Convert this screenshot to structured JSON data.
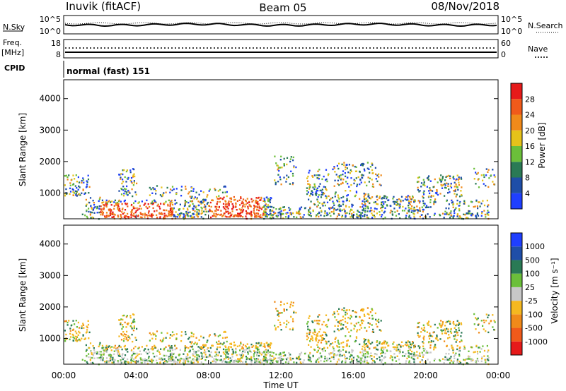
{
  "header": {
    "station": "Inuvik (fitACF)",
    "beam": "Beam 05",
    "date": "08/Nov/2018"
  },
  "left_labels": {
    "nsky": "N.Sky",
    "freq": "Freq.",
    "mhz": "[MHz]",
    "cpid": "CPID"
  },
  "right_labels": {
    "nsearch": "N.Search",
    "nave": "Nave"
  },
  "cpid_text": "normal (fast) 151",
  "noise_axis": {
    "top": "10^5",
    "bottom": "10^0",
    "right_top": "10^5",
    "right_bottom": "10^0"
  },
  "freq_axis": {
    "left": [
      "18",
      "8"
    ],
    "right": [
      "60",
      "0"
    ]
  },
  "colors": {
    "power": [
      "#1f3fff",
      "#1f4ea8",
      "#2a7a55",
      "#6bbf3a",
      "#e6c21a",
      "#f08a1a",
      "#f05a1a",
      "#e61a1a"
    ],
    "velocity": [
      "#e61a1a",
      "#f05a1a",
      "#f08a1a",
      "#f5b820",
      "#c8c8c8",
      "#6bbf3a",
      "#2a7a55",
      "#1f4ea8",
      "#1f3fff"
    ]
  },
  "chart_data": [
    {
      "type": "heatmap",
      "panel": "power",
      "ylabel": "Slant Range [km]",
      "yticks": [
        "1000",
        "2000",
        "3000",
        "4000"
      ],
      "ylim": [
        180,
        4600
      ],
      "xlim_hours": [
        0,
        24
      ],
      "colorbar_label": "Power [dB]",
      "colorbar_ticks": [
        "4",
        "8",
        "12",
        "16",
        "20",
        "24",
        "28"
      ],
      "colorbar_range": [
        0,
        32
      ]
    },
    {
      "type": "heatmap",
      "panel": "velocity",
      "ylabel": "Slant Range [km]",
      "yticks": [
        "1000",
        "2000",
        "3000",
        "4000"
      ],
      "ylim": [
        180,
        4600
      ],
      "xlim_hours": [
        0,
        24
      ],
      "xticks": [
        "00:00",
        "04:00",
        "08:00",
        "12:00",
        "16:00",
        "20:00",
        "00:00"
      ],
      "xlabel": "Time UT",
      "colorbar_label": "Velocity [m s⁻¹]",
      "colorbar_ticks": [
        "1000",
        "500",
        "100",
        "25",
        "-25",
        "-100",
        "-500",
        "-1000"
      ]
    }
  ]
}
